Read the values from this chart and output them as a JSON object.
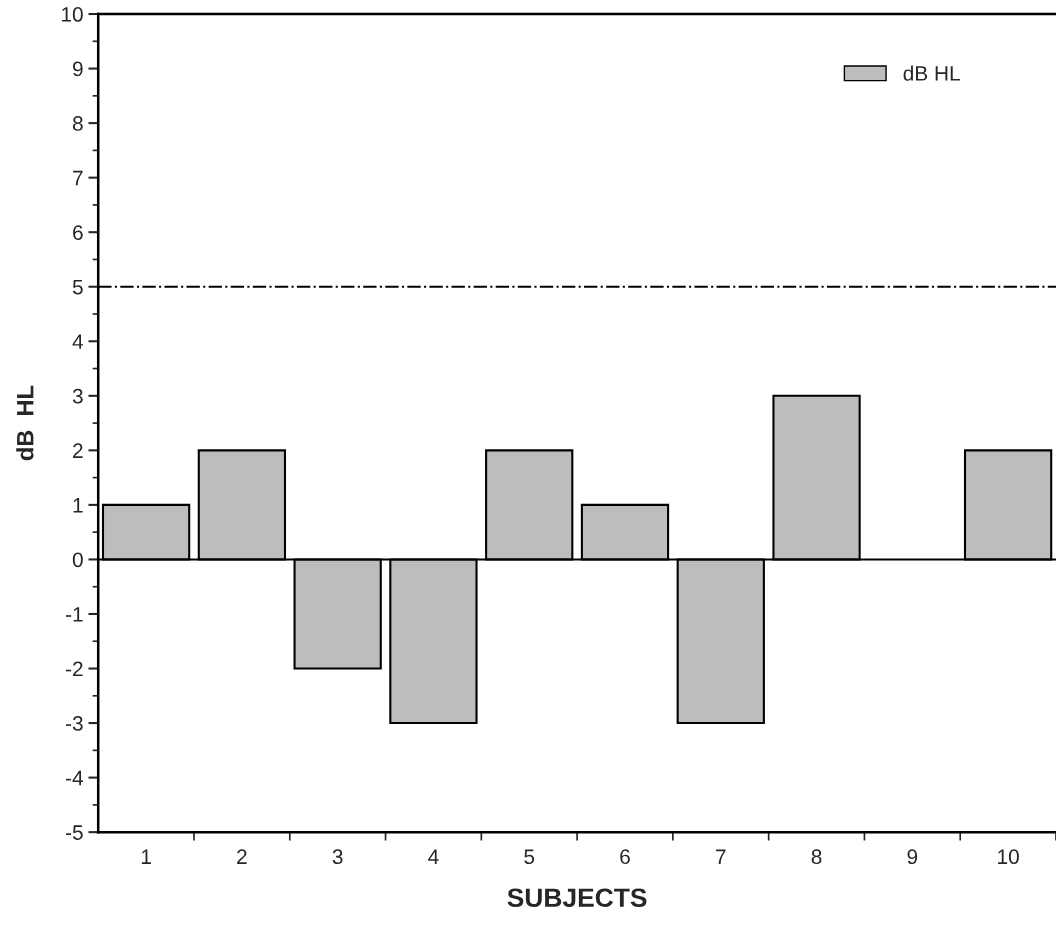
{
  "chart_data": {
    "type": "bar",
    "xlabel": "SUBJECTS",
    "ylabel": "dB  HL",
    "categories": [
      "1",
      "2",
      "3",
      "4",
      "5",
      "6",
      "7",
      "8",
      "9",
      "10"
    ],
    "series": [
      {
        "name": "dB HL",
        "color": "#bdbdbd",
        "values": [
          1,
          2,
          -2,
          -3,
          2,
          1,
          -3,
          3,
          null,
          2
        ]
      }
    ],
    "ylim": [
      -5,
      10
    ],
    "yticks": [
      -5,
      -4,
      -3,
      -2,
      -1,
      0,
      1,
      2,
      3,
      4,
      5,
      6,
      7,
      8,
      9,
      10
    ],
    "ref_lines": [
      {
        "axis": "y",
        "value": 5,
        "color": "#000000",
        "line_style": "dashdot"
      }
    ],
    "grid": false,
    "legend": "top right"
  }
}
